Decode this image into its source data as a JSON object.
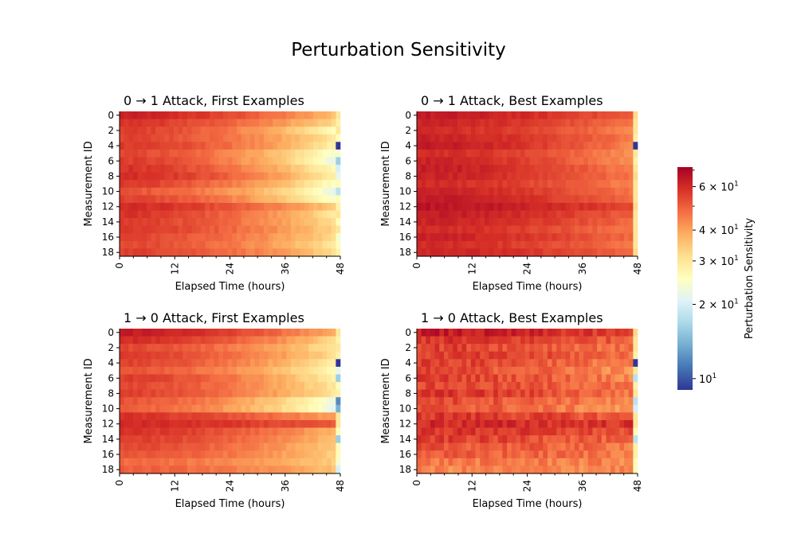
{
  "figure": {
    "title": "Perturbation Sensitivity"
  },
  "colorbar": {
    "label": "Perturbation Sensitivity",
    "scale": "log",
    "range": [
      9,
      72
    ],
    "colormap": "RdYlBu_r",
    "ticks": [
      {
        "value": 10,
        "label": "10",
        "exp": "1"
      },
      {
        "value": 20,
        "label": "2 × 10",
        "exp": "1"
      },
      {
        "value": 30,
        "label": "3 × 10",
        "exp": "1"
      },
      {
        "value": 40,
        "label": "4 × 10",
        "exp": "1"
      },
      {
        "value": 60,
        "label": "6 × 10",
        "exp": "1"
      }
    ],
    "colors": [
      "#313695",
      "#4575b4",
      "#74add1",
      "#abd9e9",
      "#e0f3f8",
      "#ffffbf",
      "#fee090",
      "#fdae61",
      "#f46d43",
      "#d73027",
      "#a50026"
    ]
  },
  "chart_data": [
    {
      "type": "heatmap",
      "title": "0 → 1 Attack, First Examples",
      "xlabel": "Elapsed Time (hours)",
      "ylabel": "Measurement ID",
      "x_range": [
        0,
        48
      ],
      "y_range": [
        0,
        18
      ],
      "x_ticks": [
        "0",
        "12",
        "24",
        "36",
        "48"
      ],
      "y_ticks": [
        "0",
        "2",
        "4",
        "6",
        "8",
        "10",
        "12",
        "14",
        "16",
        "18"
      ],
      "rows": 19,
      "row_start_values": [
        62,
        58,
        56,
        55,
        57,
        54,
        56,
        58,
        60,
        56,
        52,
        55,
        60,
        58,
        56,
        57,
        55,
        54,
        56
      ],
      "row_end_values": [
        36,
        32,
        26,
        30,
        28,
        24,
        22,
        26,
        28,
        25,
        22,
        24,
        34,
        30,
        32,
        33,
        32,
        30,
        32
      ],
      "last_column_values": [
        30,
        28,
        30,
        26,
        9,
        24,
        16,
        20,
        22,
        26,
        18,
        26,
        28,
        30,
        26,
        30,
        24,
        26,
        28
      ],
      "color_scale": "log [9, 72]"
    },
    {
      "type": "heatmap",
      "title": "0 → 1 Attack, Best Examples",
      "xlabel": "Elapsed Time (hours)",
      "ylabel": "Measurement ID",
      "x_range": [
        0,
        48
      ],
      "y_range": [
        0,
        18
      ],
      "x_ticks": [
        "0",
        "12",
        "24",
        "36",
        "48"
      ],
      "y_ticks": [
        "0",
        "2",
        "4",
        "6",
        "8",
        "10",
        "12",
        "14",
        "16",
        "18"
      ],
      "rows": 19,
      "row_start_values": [
        64,
        62,
        60,
        62,
        64,
        60,
        62,
        64,
        62,
        60,
        62,
        64,
        66,
        64,
        62,
        60,
        62,
        60,
        62
      ],
      "row_end_values": [
        50,
        46,
        44,
        46,
        44,
        42,
        42,
        44,
        46,
        44,
        46,
        48,
        54,
        50,
        48,
        46,
        48,
        46,
        48
      ],
      "last_column_values": [
        32,
        30,
        30,
        28,
        9,
        30,
        28,
        30,
        32,
        30,
        30,
        30,
        32,
        30,
        30,
        30,
        30,
        30,
        32
      ],
      "color_scale": "log [9, 72]"
    },
    {
      "type": "heatmap",
      "title": "1 → 0 Attack, First Examples",
      "xlabel": "Elapsed Time (hours)",
      "ylabel": "Measurement ID",
      "x_range": [
        0,
        48
      ],
      "y_range": [
        0,
        18
      ],
      "x_ticks": [
        "0",
        "12",
        "24",
        "36",
        "48"
      ],
      "y_ticks": [
        "0",
        "2",
        "4",
        "6",
        "8",
        "10",
        "12",
        "14",
        "16",
        "18"
      ],
      "rows": 19,
      "row_start_values": [
        64,
        60,
        54,
        56,
        55,
        52,
        56,
        54,
        55,
        52,
        50,
        58,
        60,
        58,
        56,
        54,
        52,
        48,
        50
      ],
      "row_end_values": [
        38,
        32,
        30,
        32,
        28,
        26,
        28,
        30,
        30,
        22,
        22,
        40,
        50,
        38,
        36,
        34,
        34,
        34,
        36
      ],
      "last_column_values": [
        30,
        28,
        30,
        28,
        9,
        22,
        16,
        26,
        28,
        12,
        14,
        30,
        30,
        26,
        16,
        26,
        26,
        24,
        20
      ],
      "color_scale": "log [9, 72]"
    },
    {
      "type": "heatmap",
      "title": "1 → 0 Attack, Best Examples",
      "xlabel": "Elapsed Time (hours)",
      "ylabel": "Measurement ID",
      "x_range": [
        0,
        48
      ],
      "y_range": [
        0,
        18
      ],
      "x_ticks": [
        "0",
        "12",
        "24",
        "36",
        "48"
      ],
      "y_ticks": [
        "0",
        "2",
        "4",
        "6",
        "8",
        "10",
        "12",
        "14",
        "16",
        "18"
      ],
      "rows": 19,
      "row_start_values": [
        64,
        58,
        56,
        56,
        56,
        54,
        56,
        54,
        58,
        54,
        52,
        58,
        60,
        58,
        56,
        52,
        50,
        46,
        44
      ],
      "row_end_values": [
        54,
        50,
        46,
        48,
        44,
        42,
        44,
        46,
        46,
        42,
        40,
        50,
        58,
        52,
        48,
        46,
        46,
        44,
        44
      ],
      "last_column_values": [
        32,
        30,
        30,
        28,
        9,
        30,
        18,
        28,
        30,
        18,
        20,
        30,
        30,
        26,
        18,
        28,
        28,
        26,
        26
      ],
      "color_scale": "log [9, 72]"
    }
  ]
}
